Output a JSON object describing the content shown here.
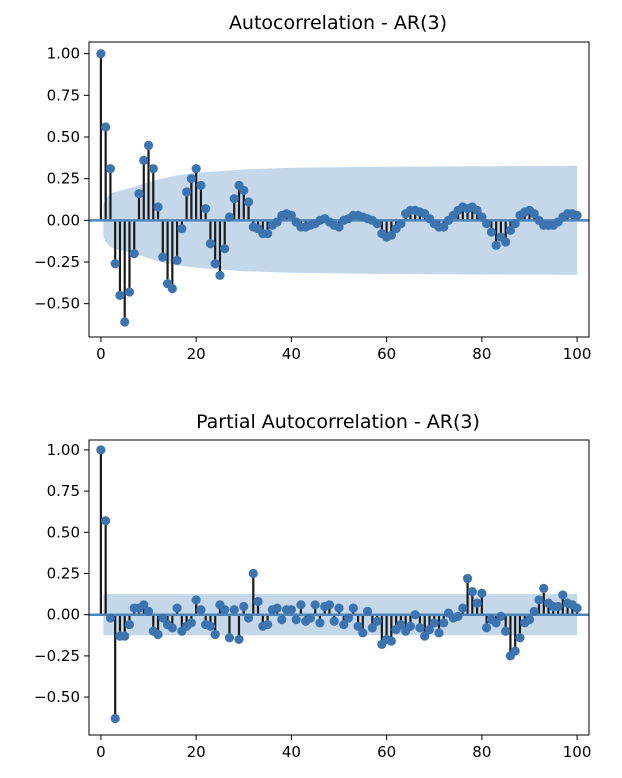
{
  "chart_data": [
    {
      "type": "stem",
      "title": "Autocorrelation - AR(3)",
      "xlabel": "",
      "ylabel": "",
      "xlim": [
        -2.5,
        102.5
      ],
      "ylim": [
        -0.7,
        1.07
      ],
      "x_ticks": [
        0,
        20,
        40,
        60,
        80,
        100
      ],
      "y_ticks": [
        1.0,
        0.75,
        0.5,
        0.25,
        0.0,
        -0.25,
        -0.5
      ],
      "x_tick_labels": [
        "0",
        "20",
        "40",
        "60",
        "80",
        "100"
      ],
      "y_tick_labels": [
        "1.00",
        "0.75",
        "0.50",
        "0.25",
        "0.00",
        "−0.25",
        "−0.50"
      ],
      "grid": false,
      "confidence_band": [
        [
          0.5,
          0.095
        ],
        [
          1,
          0.13
        ],
        [
          2,
          0.16
        ],
        [
          3,
          0.17
        ],
        [
          5,
          0.185
        ],
        [
          8,
          0.21
        ],
        [
          12,
          0.245
        ],
        [
          16,
          0.27
        ],
        [
          20,
          0.285
        ],
        [
          25,
          0.295
        ],
        [
          30,
          0.305
        ],
        [
          40,
          0.315
        ],
        [
          60,
          0.322
        ],
        [
          80,
          0.325
        ],
        [
          100,
          0.327
        ]
      ],
      "x": [
        0,
        1,
        2,
        3,
        4,
        5,
        6,
        7,
        8,
        9,
        10,
        11,
        12,
        13,
        14,
        15,
        16,
        17,
        18,
        19,
        20,
        21,
        22,
        23,
        24,
        25,
        26,
        27,
        28,
        29,
        30,
        31,
        32,
        33,
        34,
        35,
        36,
        37,
        38,
        39,
        40,
        41,
        42,
        43,
        44,
        45,
        46,
        47,
        48,
        49,
        50,
        51,
        52,
        53,
        54,
        55,
        56,
        57,
        58,
        59,
        60,
        61,
        62,
        63,
        64,
        65,
        66,
        67,
        68,
        69,
        70,
        71,
        72,
        73,
        74,
        75,
        76,
        77,
        78,
        79,
        80,
        81,
        82,
        83,
        84,
        85,
        86,
        87,
        88,
        89,
        90,
        91,
        92,
        93,
        94,
        95,
        96,
        97,
        98,
        99,
        100
      ],
      "values": [
        1.0,
        0.56,
        0.31,
        -0.26,
        -0.45,
        -0.61,
        -0.43,
        -0.2,
        0.16,
        0.36,
        0.45,
        0.31,
        0.08,
        -0.22,
        -0.38,
        -0.41,
        -0.24,
        -0.05,
        0.17,
        0.25,
        0.31,
        0.21,
        0.07,
        -0.14,
        -0.26,
        -0.33,
        -0.17,
        0.02,
        0.13,
        0.21,
        0.18,
        0.11,
        -0.04,
        -0.05,
        -0.08,
        -0.08,
        -0.03,
        -0.01,
        0.03,
        0.04,
        0.03,
        -0.01,
        -0.04,
        -0.04,
        -0.03,
        -0.02,
        0.0,
        0.01,
        -0.01,
        -0.03,
        -0.04,
        0.0,
        0.01,
        0.03,
        0.03,
        0.02,
        0.01,
        0.0,
        -0.02,
        -0.08,
        -0.1,
        -0.09,
        -0.05,
        -0.02,
        0.04,
        0.06,
        0.06,
        0.05,
        0.04,
        0.01,
        -0.02,
        -0.04,
        -0.04,
        0.0,
        0.03,
        0.06,
        0.08,
        0.07,
        0.08,
        0.06,
        0.02,
        -0.02,
        -0.07,
        -0.15,
        -0.1,
        -0.13,
        -0.06,
        -0.02,
        0.03,
        0.05,
        0.06,
        0.04,
        0.0,
        -0.03,
        -0.03,
        -0.03,
        -0.01,
        0.02,
        0.04,
        0.04,
        0.03
      ]
    },
    {
      "type": "stem",
      "title": "Partial Autocorrelation - AR(3)",
      "xlabel": "",
      "ylabel": "",
      "xlim": [
        -2.5,
        102.5
      ],
      "ylim": [
        -0.73,
        1.06
      ],
      "x_ticks": [
        0,
        20,
        40,
        60,
        80,
        100
      ],
      "y_ticks": [
        1.0,
        0.75,
        0.5,
        0.25,
        0.0,
        -0.25,
        -0.5
      ],
      "x_tick_labels": [
        "0",
        "20",
        "40",
        "60",
        "80",
        "100"
      ],
      "y_tick_labels": [
        "1.00",
        "0.75",
        "0.50",
        "0.25",
        "0.00",
        "−0.25",
        "−0.50"
      ],
      "grid": false,
      "confidence_band": [
        [
          0.5,
          0.125
        ],
        [
          100,
          0.125
        ]
      ],
      "x": [
        0,
        1,
        2,
        3,
        4,
        5,
        6,
        7,
        8,
        9,
        10,
        11,
        12,
        13,
        14,
        15,
        16,
        17,
        18,
        19,
        20,
        21,
        22,
        23,
        24,
        25,
        26,
        27,
        28,
        29,
        30,
        31,
        32,
        33,
        34,
        35,
        36,
        37,
        38,
        39,
        40,
        41,
        42,
        43,
        44,
        45,
        46,
        47,
        48,
        49,
        50,
        51,
        52,
        53,
        54,
        55,
        56,
        57,
        58,
        59,
        60,
        61,
        62,
        63,
        64,
        65,
        66,
        67,
        68,
        69,
        70,
        71,
        72,
        73,
        74,
        75,
        76,
        77,
        78,
        79,
        80,
        81,
        82,
        83,
        84,
        85,
        86,
        87,
        88,
        89,
        90,
        91,
        92,
        93,
        94,
        95,
        96,
        97,
        98,
        99,
        100
      ],
      "values": [
        1.0,
        0.57,
        -0.02,
        -0.63,
        -0.13,
        -0.13,
        -0.06,
        0.04,
        0.04,
        0.06,
        0.02,
        -0.1,
        -0.12,
        -0.02,
        -0.06,
        -0.08,
        0.04,
        -0.1,
        -0.07,
        -0.05,
        0.09,
        0.03,
        -0.06,
        -0.07,
        -0.12,
        0.06,
        0.03,
        -0.14,
        0.03,
        -0.15,
        0.05,
        -0.02,
        0.25,
        0.08,
        -0.07,
        -0.06,
        0.03,
        0.04,
        -0.03,
        0.03,
        0.03,
        -0.03,
        0.06,
        -0.04,
        -0.02,
        0.06,
        -0.05,
        0.05,
        0.06,
        -0.04,
        0.04,
        -0.06,
        -0.02,
        0.04,
        -0.07,
        -0.11,
        0.02,
        -0.08,
        -0.04,
        -0.18,
        -0.15,
        -0.16,
        -0.09,
        -0.06,
        -0.1,
        -0.07,
        0.0,
        -0.08,
        -0.13,
        -0.09,
        -0.05,
        -0.11,
        -0.05,
        0.01,
        -0.02,
        -0.01,
        0.04,
        0.22,
        0.14,
        0.07,
        0.13,
        -0.08,
        -0.03,
        -0.05,
        -0.01,
        -0.1,
        -0.25,
        -0.22,
        -0.14,
        -0.05,
        -0.03,
        0.02,
        0.09,
        0.16,
        0.07,
        0.05,
        0.05,
        0.12,
        0.07,
        0.06,
        0.04
      ]
    }
  ],
  "colors": {
    "marker": "#3d74b0",
    "stem": "#1a1a1a",
    "zero_line": "#4c86bb",
    "band": "#c4d8ea",
    "frame": "#000000"
  }
}
